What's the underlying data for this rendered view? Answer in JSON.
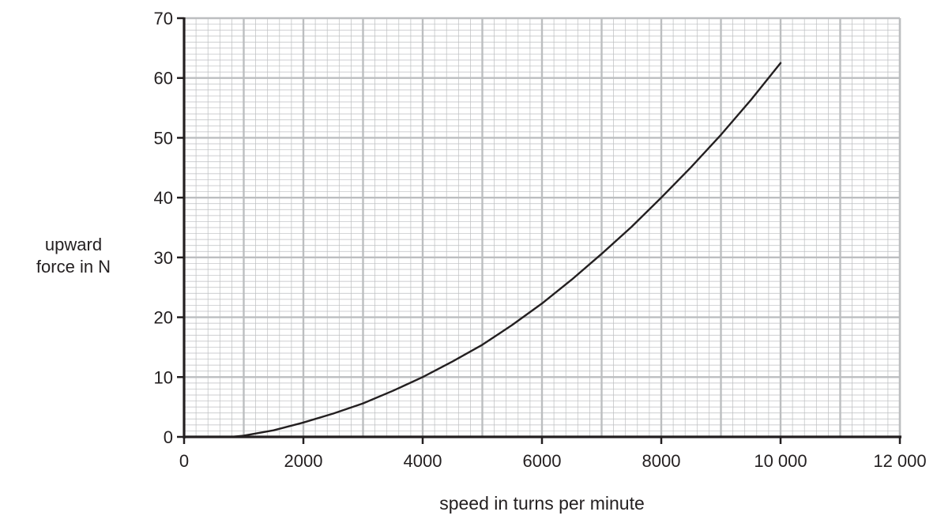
{
  "chart_data": {
    "type": "line",
    "xlabel": "speed in turns per minute",
    "ylabel_lines": [
      "upward",
      "force in N"
    ],
    "xlim": [
      0,
      12000
    ],
    "ylim": [
      0,
      70
    ],
    "x_ticks": [
      0,
      2000,
      4000,
      6000,
      8000,
      10000,
      12000
    ],
    "x_tick_labels": [
      "0",
      "2000",
      "4000",
      "6000",
      "8000",
      "10 000",
      "12 000"
    ],
    "y_ticks": [
      0,
      10,
      20,
      30,
      40,
      50,
      60,
      70
    ],
    "y_tick_labels": [
      "0",
      "10",
      "20",
      "30",
      "40",
      "50",
      "60",
      "70"
    ],
    "grid": true,
    "series": [
      {
        "x": [
          800,
          1000,
          1500,
          2000,
          2500,
          3000,
          3500,
          4000,
          4500,
          5000,
          5500,
          6000,
          6500,
          7000,
          7500,
          8000,
          8500,
          9000,
          9500,
          10000
        ],
        "y": [
          0,
          0.2,
          1.1,
          2.4,
          3.9,
          5.6,
          7.7,
          10,
          12.6,
          15.4,
          18.7,
          22.3,
          26.3,
          30.6,
          35.1,
          40,
          45.1,
          50.5,
          56.3,
          62.5
        ]
      }
    ],
    "colors": {
      "line": "#231f20",
      "axis": "#231f20",
      "grid_major": "#bcbec0",
      "grid_minor": "#bcbec0"
    }
  }
}
